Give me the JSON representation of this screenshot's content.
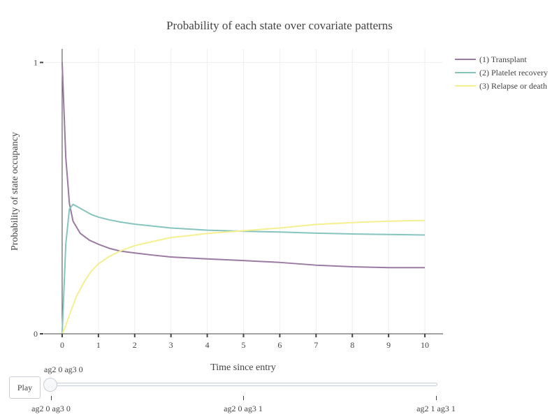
{
  "chart_data": {
    "type": "line",
    "title": "Probability of each state over covariate patterns",
    "xlabel": "Time since entry",
    "ylabel": "Probability of state occupancy",
    "xlim": [
      -0.5,
      10.5
    ],
    "ylim": [
      0,
      1.05
    ],
    "x_ticks": [
      0,
      1,
      2,
      3,
      4,
      5,
      6,
      7,
      8,
      9,
      10
    ],
    "y_ticks": [
      0,
      1
    ],
    "grid": true,
    "legend_position": "top-right",
    "series": [
      {
        "name": "(1) Transplant",
        "color": "#9b7aa3",
        "x": [
          0,
          0.1,
          0.2,
          0.3,
          0.5,
          0.75,
          1.0,
          1.3,
          1.6,
          2.0,
          2.5,
          3.0,
          4.0,
          5.0,
          6.0,
          7.0,
          8.0,
          9.0,
          10.0
        ],
        "y": [
          1.0,
          0.65,
          0.48,
          0.415,
          0.37,
          0.345,
          0.33,
          0.315,
          0.305,
          0.298,
          0.29,
          0.283,
          0.276,
          0.27,
          0.263,
          0.253,
          0.247,
          0.244,
          0.244
        ]
      },
      {
        "name": "(2) Platelet recovery",
        "color": "#86c4bf",
        "x": [
          0,
          0.1,
          0.2,
          0.3,
          0.4,
          0.6,
          0.8,
          1.0,
          1.3,
          1.6,
          2.0,
          2.5,
          3.0,
          4.0,
          5.0,
          6.0,
          7.0,
          8.0,
          9.0,
          10.0
        ],
        "y": [
          0,
          0.33,
          0.46,
          0.477,
          0.47,
          0.455,
          0.44,
          0.43,
          0.42,
          0.412,
          0.404,
          0.397,
          0.39,
          0.382,
          0.378,
          0.375,
          0.371,
          0.368,
          0.366,
          0.364
        ]
      },
      {
        "name": "(3) Relapse or death",
        "color": "#f5ef8f",
        "x": [
          0,
          0.1,
          0.2,
          0.4,
          0.6,
          0.8,
          1.0,
          1.3,
          1.6,
          2.0,
          2.5,
          3.0,
          3.5,
          4.0,
          5.0,
          6.0,
          7.0,
          8.0,
          9.0,
          10.0
        ],
        "y": [
          0,
          0.03,
          0.07,
          0.14,
          0.19,
          0.23,
          0.258,
          0.285,
          0.305,
          0.325,
          0.34,
          0.355,
          0.362,
          0.37,
          0.38,
          0.39,
          0.403,
          0.41,
          0.415,
          0.418
        ]
      }
    ]
  },
  "controls": {
    "play_label": "Play",
    "slider_current": "ag2 0 ag3 0",
    "slider_steps": [
      "ag2 0 ag3 0",
      "ag2 0 ag3 1",
      "ag2 1 ag3 1"
    ]
  }
}
